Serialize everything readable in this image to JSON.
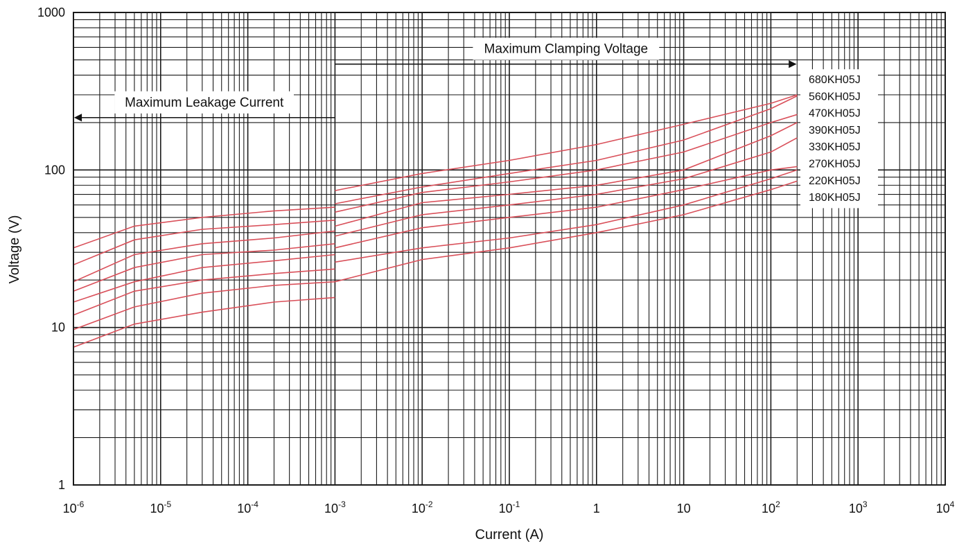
{
  "chart_data": {
    "type": "line",
    "title": "",
    "xlabel": "Current (A)",
    "ylabel": "Voltage (V)",
    "xscale": "log",
    "yscale": "log",
    "xlim": [
      1e-06,
      10000
    ],
    "ylim": [
      1,
      1000
    ],
    "grid": true,
    "x_ticks": [
      {
        "value": 1e-06,
        "base": "10",
        "exp": "-6"
      },
      {
        "value": 1e-05,
        "base": "10",
        "exp": "-5"
      },
      {
        "value": 0.0001,
        "base": "10",
        "exp": "-4"
      },
      {
        "value": 0.001,
        "base": "10",
        "exp": "-3"
      },
      {
        "value": 0.01,
        "base": "10",
        "exp": "-2"
      },
      {
        "value": 0.1,
        "base": "10",
        "exp": "-1"
      },
      {
        "value": 1,
        "base": "1",
        "exp": ""
      },
      {
        "value": 10,
        "base": "10",
        "exp": ""
      },
      {
        "value": 100,
        "base": "10",
        "exp": "2"
      },
      {
        "value": 1000,
        "base": "10",
        "exp": "3"
      },
      {
        "value": 10000,
        "base": "10",
        "exp": "4"
      }
    ],
    "y_ticks": [
      {
        "value": 1,
        "label": "1"
      },
      {
        "value": 10,
        "label": "10"
      },
      {
        "value": 100,
        "label": "100"
      },
      {
        "value": 1000,
        "label": "1000"
      }
    ],
    "line_color": "#d9505a",
    "grid_color": "#1a1a1a",
    "annotations": [
      {
        "text": "Maximum Leakage Current",
        "direction": "left",
        "x_from": 0.001,
        "x_to": 1e-06,
        "y": 215
      },
      {
        "text": "Maximum Clamping Voltage",
        "direction": "right",
        "x_from": 0.001,
        "x_to": 200,
        "y": 470
      }
    ],
    "series": [
      {
        "name": "680KH05J",
        "leakage": [
          [
            1e-06,
            32
          ],
          [
            5e-06,
            44
          ],
          [
            3e-05,
            50
          ],
          [
            0.0002,
            55
          ],
          [
            0.001,
            58
          ]
        ],
        "clamp": [
          [
            0.001,
            74
          ],
          [
            0.01,
            95
          ],
          [
            0.1,
            115
          ],
          [
            1,
            145
          ],
          [
            10,
            195
          ],
          [
            100,
            265
          ],
          [
            200,
            300
          ]
        ]
      },
      {
        "name": "560KH05J",
        "leakage": [
          [
            1e-06,
            25
          ],
          [
            5e-06,
            36
          ],
          [
            3e-05,
            42
          ],
          [
            0.0002,
            45
          ],
          [
            0.001,
            48
          ]
        ],
        "clamp": [
          [
            0.001,
            61
          ],
          [
            0.01,
            78
          ],
          [
            0.1,
            95
          ],
          [
            1,
            115
          ],
          [
            10,
            155
          ],
          [
            100,
            245
          ],
          [
            200,
            295
          ]
        ]
      },
      {
        "name": "470KH05J",
        "leakage": [
          [
            1e-06,
            19.5
          ],
          [
            5e-06,
            29
          ],
          [
            3e-05,
            34
          ],
          [
            0.0002,
            37
          ],
          [
            0.001,
            41
          ]
        ],
        "clamp": [
          [
            0.001,
            54
          ],
          [
            0.01,
            72
          ],
          [
            0.1,
            84
          ],
          [
            1,
            100
          ],
          [
            10,
            130
          ],
          [
            100,
            200
          ],
          [
            200,
            225
          ]
        ]
      },
      {
        "name": "390KH05J",
        "leakage": [
          [
            1e-06,
            17
          ],
          [
            5e-06,
            24
          ],
          [
            3e-05,
            29
          ],
          [
            0.0002,
            31
          ],
          [
            0.001,
            34
          ]
        ],
        "clamp": [
          [
            0.001,
            44
          ],
          [
            0.01,
            62
          ],
          [
            0.1,
            70
          ],
          [
            1,
            80
          ],
          [
            10,
            100
          ],
          [
            100,
            165
          ],
          [
            200,
            200
          ]
        ]
      },
      {
        "name": "330KH05J",
        "leakage": [
          [
            1e-06,
            14.5
          ],
          [
            5e-06,
            19.5
          ],
          [
            3e-05,
            24
          ],
          [
            0.0002,
            26.5
          ],
          [
            0.001,
            29
          ]
        ],
        "clamp": [
          [
            0.001,
            38
          ],
          [
            0.01,
            52
          ],
          [
            0.1,
            60
          ],
          [
            1,
            70
          ],
          [
            10,
            88
          ],
          [
            100,
            130
          ],
          [
            200,
            160
          ]
        ]
      },
      {
        "name": "270KH05J",
        "leakage": [
          [
            1e-06,
            12
          ],
          [
            5e-06,
            17
          ],
          [
            3e-05,
            20
          ],
          [
            0.0002,
            22
          ],
          [
            0.001,
            23.5
          ]
        ],
        "clamp": [
          [
            0.001,
            32
          ],
          [
            0.01,
            43
          ],
          [
            0.1,
            50
          ],
          [
            1,
            58
          ],
          [
            10,
            75
          ],
          [
            100,
            100
          ],
          [
            200,
            105
          ]
        ]
      },
      {
        "name": "220KH05J",
        "leakage": [
          [
            1e-06,
            9.7
          ],
          [
            5e-06,
            13.5
          ],
          [
            3e-05,
            16.5
          ],
          [
            0.0002,
            18.5
          ],
          [
            0.001,
            19.5
          ]
        ],
        "clamp": [
          [
            0.001,
            26
          ],
          [
            0.01,
            32
          ],
          [
            0.1,
            37
          ],
          [
            1,
            45
          ],
          [
            10,
            60
          ],
          [
            100,
            88
          ],
          [
            200,
            100
          ]
        ]
      },
      {
        "name": "180KH05J",
        "leakage": [
          [
            1e-06,
            7.5
          ],
          [
            5e-06,
            10.5
          ],
          [
            3e-05,
            12.5
          ],
          [
            0.0002,
            14.5
          ],
          [
            0.001,
            15.5
          ]
        ],
        "clamp": [
          [
            0.001,
            19.5
          ],
          [
            0.01,
            27
          ],
          [
            0.1,
            32
          ],
          [
            1,
            40
          ],
          [
            10,
            52
          ],
          [
            100,
            75
          ],
          [
            200,
            85
          ]
        ]
      }
    ]
  }
}
